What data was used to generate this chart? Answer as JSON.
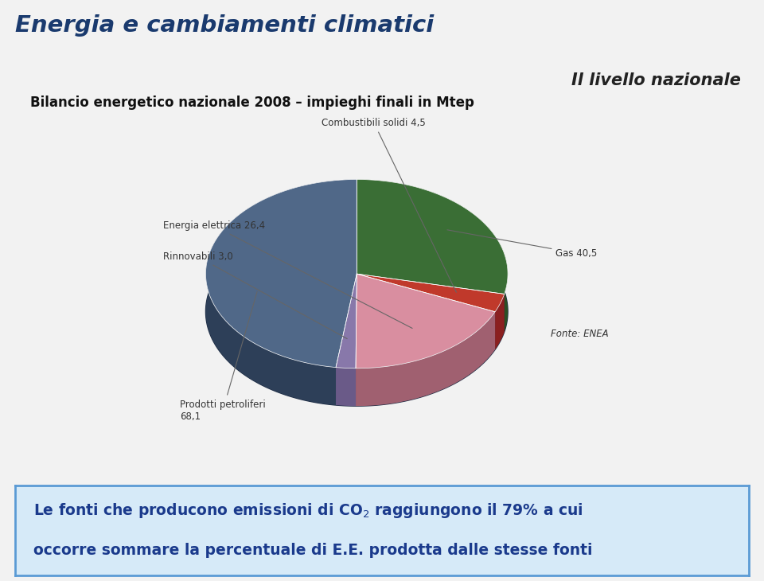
{
  "title": "Energia e cambiamenti climatici",
  "subtitle": "Il livello nazionale",
  "chart_title": "Bilancio energetico nazionale 2008 – impieghi finali in Mtep",
  "slices": [
    {
      "label": "Gas",
      "value": 40.5,
      "color": "#3a6e35",
      "dark_color": "#2a5025"
    },
    {
      "label": "Combustibili solidi",
      "value": 4.5,
      "color": "#c0392b",
      "dark_color": "#8b2020"
    },
    {
      "label": "Energia elettrica",
      "value": 26.4,
      "color": "#d98ea0",
      "dark_color": "#a06070"
    },
    {
      "label": "Rinnovabili",
      "value": 3.0,
      "color": "#8878aa",
      "dark_color": "#6a5a88"
    },
    {
      "label": "Prodotti petroliferi",
      "value": 68.1,
      "color": "#506888",
      "dark_color": "#2d3f58"
    }
  ],
  "fonte_label": "Fonte: ENEA",
  "bg_color": "#f2f2f2",
  "box_bg": "#d6eaf8",
  "box_border": "#5b9bd5",
  "title_color": "#1a3a6e",
  "subtitle_color": "#222222",
  "chart_title_color": "#111111",
  "text_color": "#1a3a8c",
  "depth_color": "#1e2d45",
  "label_color": "#333333"
}
